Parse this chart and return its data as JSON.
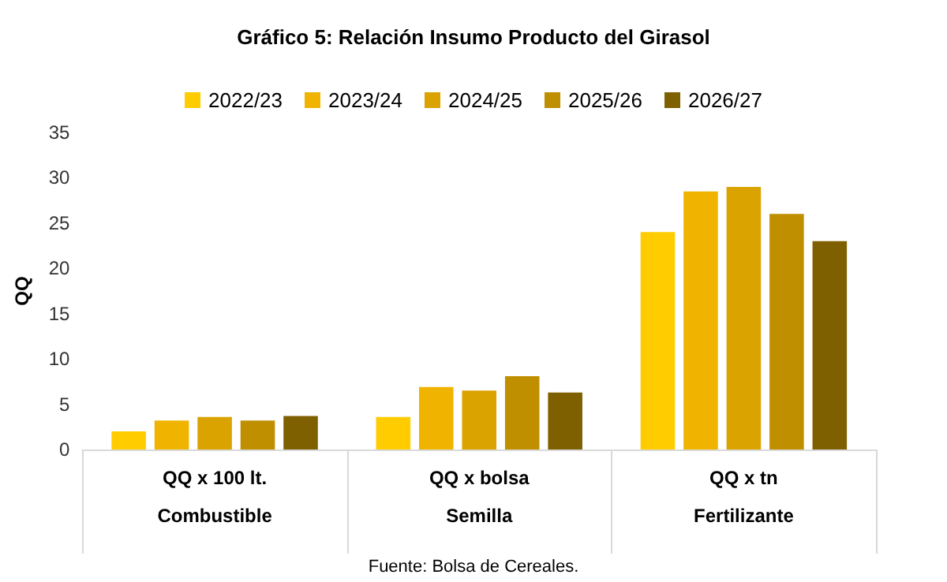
{
  "chart_data": {
    "type": "bar",
    "title": "Gráfico 5: Relación Insumo Producto del Girasol",
    "ylabel": "QQ",
    "categories": [
      "QQ x 100 lt.\n\nCombustible",
      "QQ x bolsa\n\nSemilla",
      "QQ x tn\n\nFertilizante"
    ],
    "series": [
      {
        "name": "2022/23",
        "color": "#ffcc00",
        "values": [
          2.0,
          3.6,
          24.0
        ]
      },
      {
        "name": "2023/24",
        "color": "#f0b400",
        "values": [
          3.2,
          6.9,
          28.5
        ]
      },
      {
        "name": "2024/25",
        "color": "#dba300",
        "values": [
          3.6,
          6.5,
          29.0
        ]
      },
      {
        "name": "2025/26",
        "color": "#bf8f00",
        "values": [
          3.2,
          8.1,
          26.0
        ]
      },
      {
        "name": "2026/27",
        "color": "#7f6000",
        "values": [
          3.7,
          6.3,
          23.0
        ]
      }
    ],
    "ylim": [
      0,
      35
    ],
    "yticks": [
      0,
      5,
      10,
      15,
      20,
      25,
      30,
      35
    ],
    "grid": false,
    "legend": "top",
    "annotations": [
      "Fuente: Bolsa de Cereales."
    ]
  }
}
